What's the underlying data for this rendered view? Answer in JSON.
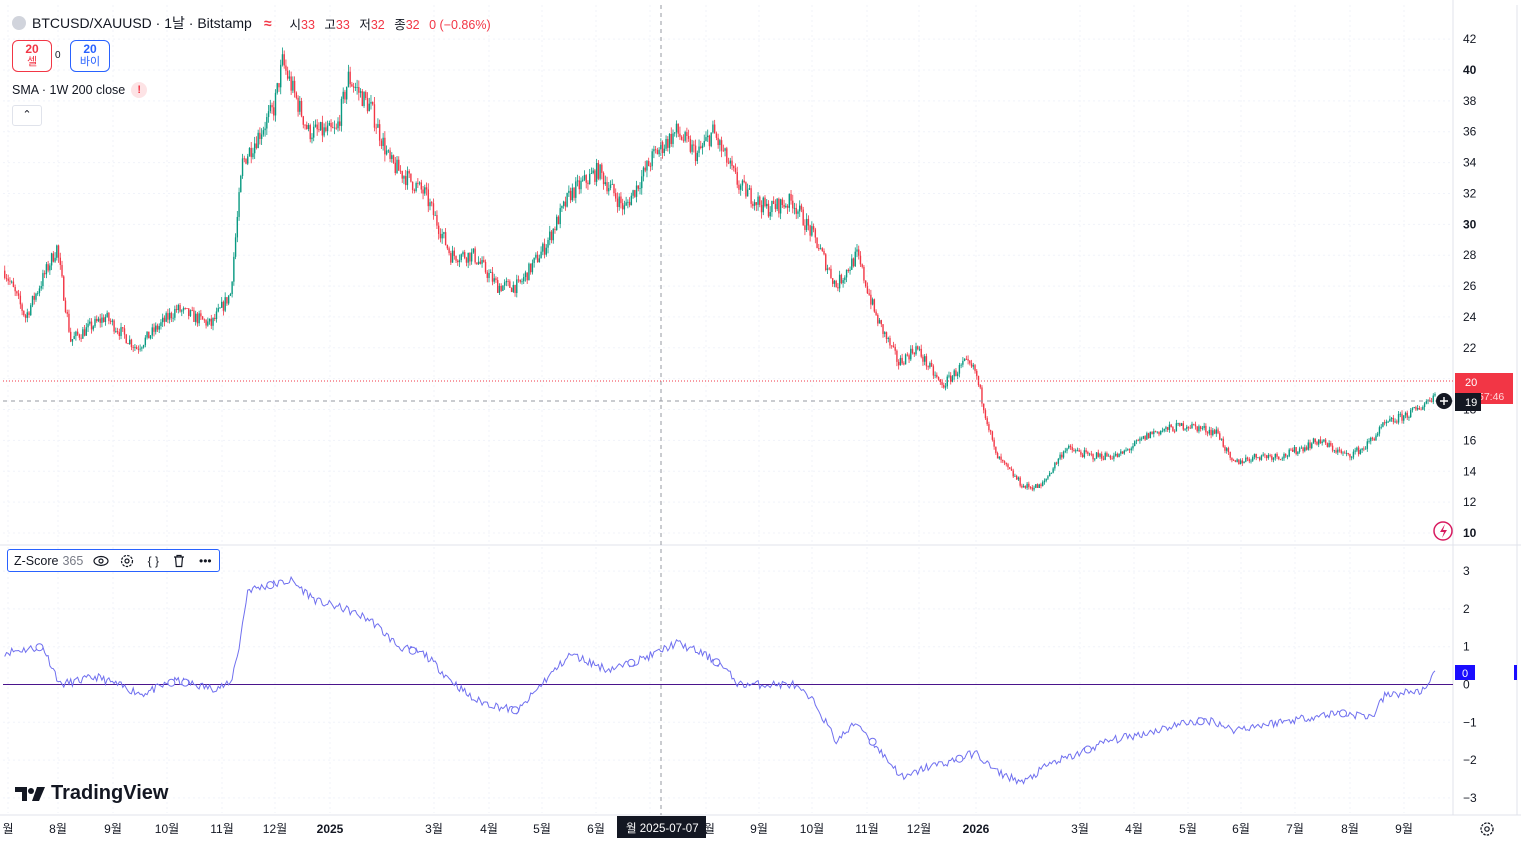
{
  "header": {
    "symbol_title": "BTCUSD/XAUUSD · 1날 · Bitstamp",
    "ohlc": [
      {
        "label": "시",
        "value": "33"
      },
      {
        "label": "고",
        "value": "33"
      },
      {
        "label": "저",
        "value": "32"
      },
      {
        "label": "종",
        "value": "32"
      }
    ],
    "change": "0 (−0.86%)"
  },
  "trade": {
    "sell_price": "20",
    "sell_label": "셀",
    "spread": "0",
    "buy_price": "20",
    "buy_label": "바이"
  },
  "sma_indicator": {
    "label": "SMA · 1W 200 close",
    "warning": "!"
  },
  "zscore_indicator": {
    "name": "Z-Score",
    "param": "365"
  },
  "crosshair": {
    "date_label": "2025-07-07",
    "prefix": "월",
    "price_label": "19"
  },
  "last_price": {
    "value": "20",
    "countdown": "57:46"
  },
  "zscore_last": "0",
  "branding": {
    "text": "TradingView"
  },
  "colors": {
    "up": "#089981",
    "down": "#f23645",
    "zline": "#7070ef",
    "zero_line": "#4a148c",
    "accent": "#2962ff"
  },
  "chart_data": [
    {
      "type": "candlestick",
      "title": "BTCUSD/XAUUSD",
      "x_tick_labels": [
        "월",
        "8월",
        "9월",
        "10월",
        "11월",
        "12월",
        "2025",
        "3월",
        "4월",
        "5월",
        "6월",
        "7월",
        "8월",
        "9월",
        "10월",
        "11월",
        "12월",
        "2026",
        "3월",
        "4월",
        "5월",
        "6월",
        "7월",
        "8월",
        "9월"
      ],
      "y_ticks": [
        10,
        12,
        14,
        16,
        18,
        20,
        22,
        24,
        26,
        28,
        30,
        32,
        34,
        36,
        38,
        40,
        42
      ],
      "ylim": [
        10,
        42.5
      ],
      "grid": true,
      "approx_close_path": [
        {
          "x": "2024-06-28",
          "y": 27.0
        },
        {
          "x": "2024-07-10",
          "y": 24.0
        },
        {
          "x": "2024-07-28",
          "y": 28.5
        },
        {
          "x": "2024-08-05",
          "y": 22.5
        },
        {
          "x": "2024-08-25",
          "y": 24.0
        },
        {
          "x": "2024-09-12",
          "y": 22.0
        },
        {
          "x": "2024-10-05",
          "y": 24.5
        },
        {
          "x": "2024-10-25",
          "y": 23.5
        },
        {
          "x": "2024-11-05",
          "y": 25.5
        },
        {
          "x": "2024-11-12",
          "y": 34.0
        },
        {
          "x": "2024-11-30",
          "y": 37.5
        },
        {
          "x": "2024-12-05",
          "y": 40.5
        },
        {
          "x": "2024-12-20",
          "y": 36.0
        },
        {
          "x": "2025-01-05",
          "y": 36.0
        },
        {
          "x": "2025-01-12",
          "y": 39.5
        },
        {
          "x": "2025-01-25",
          "y": 37.5
        },
        {
          "x": "2025-02-05",
          "y": 34.0
        },
        {
          "x": "2025-02-25",
          "y": 32.0
        },
        {
          "x": "2025-03-12",
          "y": 28.0
        },
        {
          "x": "2025-03-25",
          "y": 28.0
        },
        {
          "x": "2025-04-08",
          "y": 26.0
        },
        {
          "x": "2025-04-20",
          "y": 26.0
        },
        {
          "x": "2025-05-05",
          "y": 28.5
        },
        {
          "x": "2025-05-20",
          "y": 32.0
        },
        {
          "x": "2025-06-05",
          "y": 33.5
        },
        {
          "x": "2025-06-20",
          "y": 31.0
        },
        {
          "x": "2025-07-07",
          "y": 34.5
        },
        {
          "x": "2025-07-20",
          "y": 36.0
        },
        {
          "x": "2025-08-01",
          "y": 34.5
        },
        {
          "x": "2025-08-10",
          "y": 36.0
        },
        {
          "x": "2025-08-25",
          "y": 32.5
        },
        {
          "x": "2025-09-10",
          "y": 31.0
        },
        {
          "x": "2025-09-25",
          "y": 31.5
        },
        {
          "x": "2025-10-08",
          "y": 29.0
        },
        {
          "x": "2025-10-20",
          "y": 26.0
        },
        {
          "x": "2025-11-01",
          "y": 28.0
        },
        {
          "x": "2025-11-12",
          "y": 24.0
        },
        {
          "x": "2025-11-25",
          "y": 21.0
        },
        {
          "x": "2025-12-05",
          "y": 22.0
        },
        {
          "x": "2025-12-20",
          "y": 19.5
        },
        {
          "x": "2026-01-02",
          "y": 21.0
        },
        {
          "x": "2026-01-08",
          "y": 20.5
        },
        {
          "x": "2026-01-20",
          "y": 15.0
        },
        {
          "x": "2026-02-05",
          "y": 13.0
        },
        {
          "x": "2026-02-15",
          "y": 13.0
        },
        {
          "x": "2026-03-01",
          "y": 15.5
        },
        {
          "x": "2026-03-15",
          "y": 15.0
        },
        {
          "x": "2026-04-01",
          "y": 15.0
        },
        {
          "x": "2026-04-20",
          "y": 16.5
        },
        {
          "x": "2026-05-10",
          "y": 17.0
        },
        {
          "x": "2026-05-28",
          "y": 16.5
        },
        {
          "x": "2026-06-05",
          "y": 14.5
        },
        {
          "x": "2026-06-20",
          "y": 15.0
        },
        {
          "x": "2026-07-05",
          "y": 15.0
        },
        {
          "x": "2026-07-25",
          "y": 16.0
        },
        {
          "x": "2026-08-10",
          "y": 15.0
        },
        {
          "x": "2026-08-20",
          "y": 15.5
        },
        {
          "x": "2026-09-01",
          "y": 17.0
        },
        {
          "x": "2026-09-20",
          "y": 18.0
        },
        {
          "x": "2026-09-30",
          "y": 19.0
        }
      ]
    },
    {
      "type": "line",
      "title": "Z-Score 365",
      "y_ticks": [
        -3,
        -2,
        -1,
        0,
        1,
        2,
        3
      ],
      "ylim": [
        -3.3,
        3.3
      ],
      "zero_line": 0,
      "approx_path": [
        {
          "x": "2024-06-28",
          "y": 0.85
        },
        {
          "x": "2024-07-20",
          "y": 1.0
        },
        {
          "x": "2024-07-30",
          "y": 0.0
        },
        {
          "x": "2024-08-20",
          "y": 0.2
        },
        {
          "x": "2024-09-15",
          "y": -0.25
        },
        {
          "x": "2024-10-05",
          "y": 0.1
        },
        {
          "x": "2024-10-25",
          "y": -0.1
        },
        {
          "x": "2024-11-05",
          "y": 0.0
        },
        {
          "x": "2024-11-10",
          "y": 1.0
        },
        {
          "x": "2024-11-15",
          "y": 2.5
        },
        {
          "x": "2024-11-25",
          "y": 2.6
        },
        {
          "x": "2024-12-10",
          "y": 2.75
        },
        {
          "x": "2024-12-25",
          "y": 2.2
        },
        {
          "x": "2025-01-10",
          "y": 2.0
        },
        {
          "x": "2025-01-25",
          "y": 1.7
        },
        {
          "x": "2025-02-10",
          "y": 1.0
        },
        {
          "x": "2025-02-25",
          "y": 0.8
        },
        {
          "x": "2025-03-10",
          "y": 0.2
        },
        {
          "x": "2025-03-25",
          "y": -0.4
        },
        {
          "x": "2025-04-10",
          "y": -0.6
        },
        {
          "x": "2025-04-20",
          "y": -0.7
        },
        {
          "x": "2025-05-05",
          "y": 0.1
        },
        {
          "x": "2025-05-20",
          "y": 0.8
        },
        {
          "x": "2025-06-10",
          "y": 0.4
        },
        {
          "x": "2025-06-20",
          "y": 0.5
        },
        {
          "x": "2025-07-07",
          "y": 0.8
        },
        {
          "x": "2025-07-20",
          "y": 1.1
        },
        {
          "x": "2025-08-05",
          "y": 0.8
        },
        {
          "x": "2025-08-15",
          "y": 0.5
        },
        {
          "x": "2025-08-25",
          "y": 0.0
        },
        {
          "x": "2025-09-10",
          "y": 0.0
        },
        {
          "x": "2025-09-25",
          "y": 0.0
        },
        {
          "x": "2025-10-08",
          "y": -0.5
        },
        {
          "x": "2025-10-20",
          "y": -1.5
        },
        {
          "x": "2025-11-01",
          "y": -1.0
        },
        {
          "x": "2025-11-15",
          "y": -1.8
        },
        {
          "x": "2025-11-28",
          "y": -2.5
        },
        {
          "x": "2025-12-10",
          "y": -2.2
        },
        {
          "x": "2025-12-28",
          "y": -2.0
        },
        {
          "x": "2026-01-08",
          "y": -1.8
        },
        {
          "x": "2026-01-20",
          "y": -2.3
        },
        {
          "x": "2026-02-05",
          "y": -2.6
        },
        {
          "x": "2026-02-20",
          "y": -2.1
        },
        {
          "x": "2026-03-05",
          "y": -1.9
        },
        {
          "x": "2026-03-25",
          "y": -1.5
        },
        {
          "x": "2026-04-15",
          "y": -1.3
        },
        {
          "x": "2026-05-10",
          "y": -1.0
        },
        {
          "x": "2026-05-25",
          "y": -0.95
        },
        {
          "x": "2026-06-05",
          "y": -1.2
        },
        {
          "x": "2026-06-25",
          "y": -1.05
        },
        {
          "x": "2026-07-15",
          "y": -0.9
        },
        {
          "x": "2026-08-05",
          "y": -0.75
        },
        {
          "x": "2026-08-25",
          "y": -0.85
        },
        {
          "x": "2026-09-01",
          "y": -0.3
        },
        {
          "x": "2026-09-15",
          "y": -0.2
        },
        {
          "x": "2026-09-25",
          "y": -0.15
        },
        {
          "x": "2026-09-30",
          "y": 0.3
        }
      ]
    }
  ]
}
